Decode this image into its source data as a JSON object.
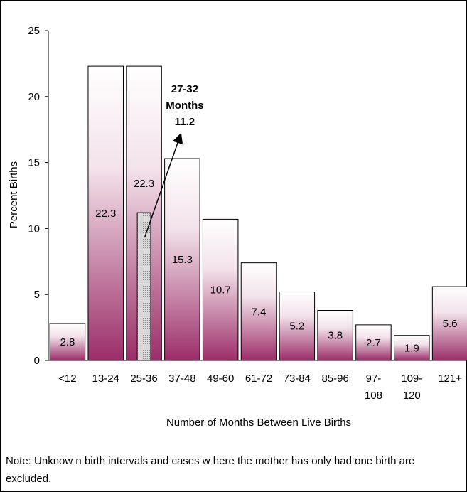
{
  "chart_data": {
    "type": "bar",
    "xlabel": "Number of Months Between Live Births",
    "ylabel": "Percent Births",
    "ylim": [
      0,
      25
    ],
    "yticks": [
      0,
      5,
      10,
      15,
      20,
      25
    ],
    "categories": [
      [
        "<12"
      ],
      [
        "13-24"
      ],
      [
        "25-36"
      ],
      [
        "37-48"
      ],
      [
        "49-60"
      ],
      [
        "61-72"
      ],
      [
        "73-84"
      ],
      [
        "85-96"
      ],
      [
        "97-",
        "108"
      ],
      [
        "109-",
        "120"
      ],
      [
        "121+"
      ]
    ],
    "values": [
      2.8,
      22.3,
      22.3,
      15.3,
      10.7,
      7.4,
      5.2,
      3.8,
      2.7,
      1.9,
      5.6
    ],
    "data_labels": [
      "2.8",
      "22.3",
      "22.3",
      "15.3",
      "10.7",
      "7.4",
      "5.2",
      "3.8",
      "2.7",
      "1.9",
      "5.6"
    ],
    "highlight": {
      "category_index": 2,
      "value": 11.2,
      "label_lines": [
        "27-32",
        "Months",
        "11.2"
      ]
    },
    "colors": {
      "bar_top": "#ffffff",
      "bar_bottom": "#9b2d68",
      "highlight": "#cfcfcf"
    }
  },
  "note": "Note:  Unknow n birth intervals and cases w here the mother has only had one birth are excluded."
}
